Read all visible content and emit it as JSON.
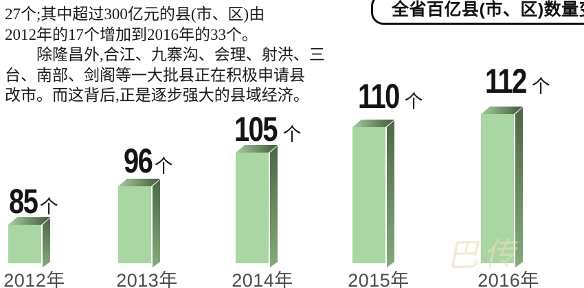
{
  "article": {
    "lines": [
      "27个;其中超过300亿元的县(市、区)由",
      "2012年的17个增加到2016年的33个。",
      "　　除隆昌外,合江、九寨沟、会理、射洪、三",
      "台、南部、剑阁等一大批县正在积极申请县",
      "改市。而这背后,正是逐步强大的县域经济。"
    ]
  },
  "banner": {
    "title": "全省百亿县(市、区)数量变化"
  },
  "chart_data": {
    "type": "bar",
    "title": "全省百亿县(市、区)数量变化",
    "categories": [
      "2012年",
      "2013年",
      "2014年",
      "2015年",
      "2016年"
    ],
    "values": [
      85,
      96,
      105,
      110,
      112
    ],
    "unit": "个",
    "ylim": [
      0,
      120
    ],
    "grid": false,
    "legend": "none",
    "colors": {
      "bar_front": "#a9d6a3",
      "bar_side_top": "#4e6647",
      "bar_side_bottom": "#85aa7b",
      "bar_top_left": "#a6cb9d",
      "bar_top_right": "#42593c",
      "value_label": "#141414",
      "year_label": "#4c4c4c"
    }
  },
  "watermark": {
    "text": "巴传"
  }
}
